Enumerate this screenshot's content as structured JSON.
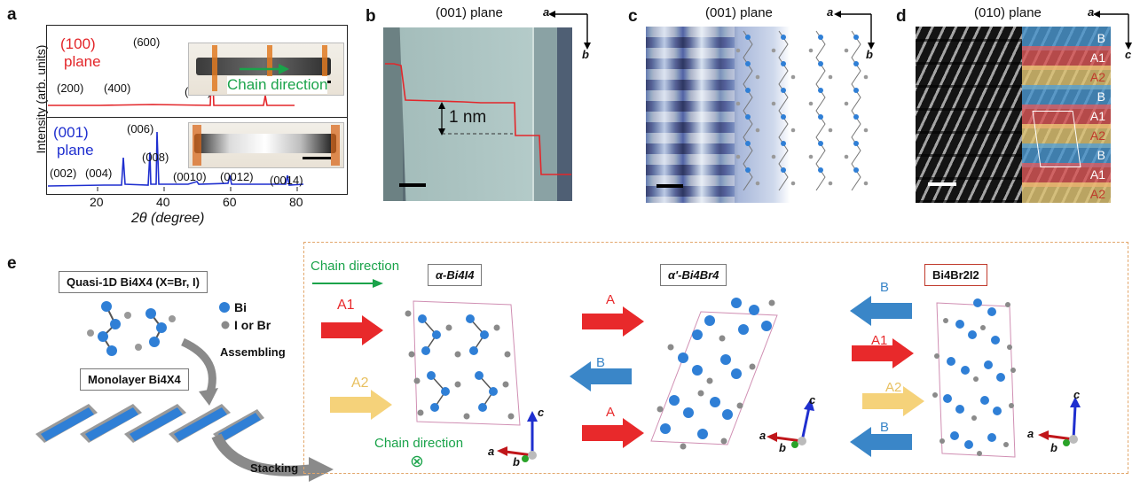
{
  "panel_letters": {
    "a": "a",
    "b": "b",
    "c": "c",
    "d": "d",
    "e": "e"
  },
  "panel_a": {
    "ylabel": "Intensity (arb. units)",
    "xlabel": "2θ (degree)",
    "xticks": [
      "20",
      "40",
      "60",
      "80"
    ],
    "top": {
      "plane_label_line1": "(100)",
      "plane_label_line2": "plane",
      "peaks": [
        "(200)",
        "(400)",
        "(600)",
        "(800)"
      ],
      "color": "#e3262a"
    },
    "bottom": {
      "plane_label_line1": "(001)",
      "plane_label_line2": "plane",
      "peaks": [
        "(002)",
        "(004)",
        "(006)",
        "(008)",
        "(0010)",
        "(0012)",
        "(0014)"
      ],
      "color": "#1f2fcf"
    },
    "inset_caption": "Chain direction",
    "chain_color": "#1aa34a"
  },
  "panel_b": {
    "title": "(001) plane",
    "step_label": "1 nm",
    "axis_a": "a",
    "axis_b": "b"
  },
  "panel_c": {
    "title": "(001) plane",
    "axis_a": "a",
    "axis_b": "b"
  },
  "panel_d": {
    "title": "(010) plane",
    "axis_a": "a",
    "axis_c": "c",
    "stack": [
      "B",
      "A1",
      "A2",
      "B",
      "A1",
      "A2",
      "B",
      "A1",
      "A2"
    ],
    "stack_colors": {
      "B": "#4c9fdc",
      "A1": "#e85a5a",
      "A2": "#efd27a"
    }
  },
  "panel_e": {
    "quasi_title": "Quasi-1D Bi4X4 (X=Br, I)",
    "legend_bi": "Bi",
    "legend_x": "I or Br",
    "assembling": "Assembling",
    "monolayer_title": "Monolayer Bi4X4",
    "stacking": "Stacking",
    "chain_direction_top": "Chain direction",
    "chain_direction_bottom": "Chain direction",
    "structures": [
      "α-Bi4I4",
      "α'-Bi4Br4",
      "Bi4Br2I2"
    ],
    "arrows_left": [
      "A1",
      "A2"
    ],
    "arrows_mid": [
      "A",
      "B",
      "A"
    ],
    "arrows_right": [
      "B",
      "A1",
      "A2",
      "B"
    ],
    "axis_labels": {
      "a": "a",
      "b": "b",
      "c": "c"
    },
    "colors": {
      "A": "#e8292b",
      "A1": "#e8292b",
      "A2": "#f5d27a",
      "B": "#3a86c8",
      "atom_bi": "#2f7fd6",
      "atom_x": "#8a8a8a"
    }
  }
}
